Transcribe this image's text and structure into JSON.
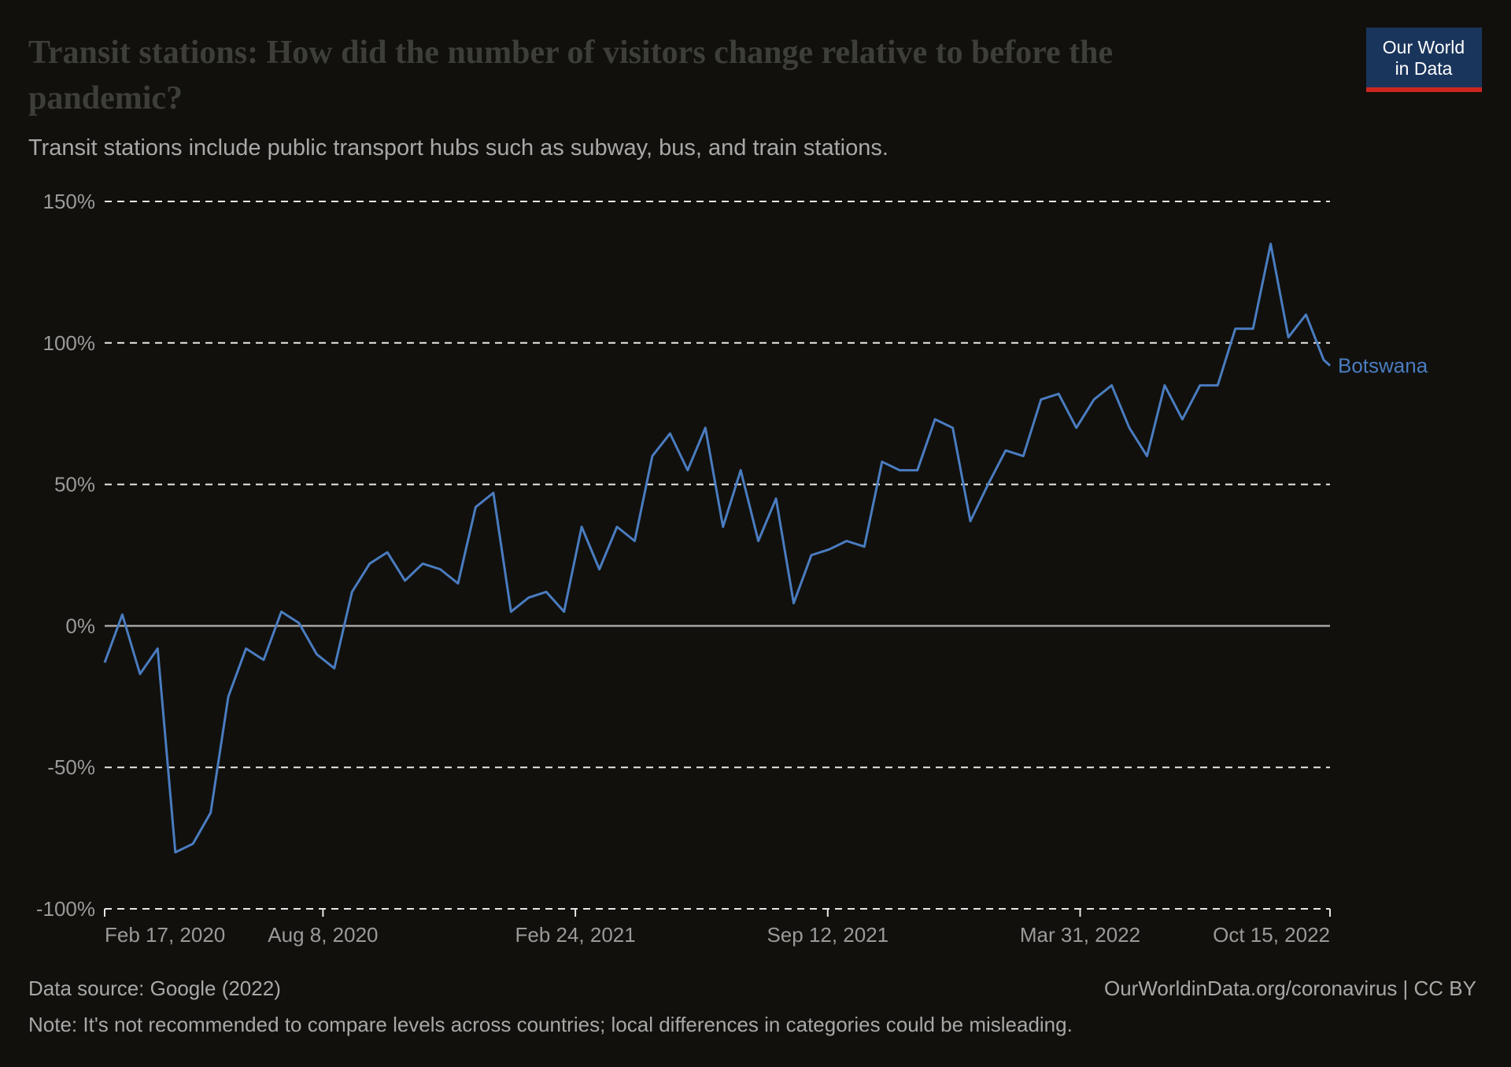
{
  "chart_data": {
    "type": "line",
    "title": "Transit stations: How did the number of visitors change relative to before the pandemic?",
    "subtitle": "Transit stations include public transport hubs such as subway, bus, and train stations.",
    "source": "Data source: Google (2022)",
    "credit": "OurWorldinData.org/coronavirus | CC BY",
    "note": "Note: It's not recommended to compare levels across countries; local differences in categories could be misleading.",
    "logo": [
      "Our World",
      "in Data"
    ],
    "x": [
      "2020-02-17",
      "2020-03-02",
      "2020-03-16",
      "2020-03-30",
      "2020-04-13",
      "2020-04-27",
      "2020-05-11",
      "2020-05-25",
      "2020-06-08",
      "2020-06-22",
      "2020-07-06",
      "2020-07-20",
      "2020-08-03",
      "2020-08-17",
      "2020-08-31",
      "2020-09-14",
      "2020-09-28",
      "2020-10-12",
      "2020-10-26",
      "2020-11-09",
      "2020-11-23",
      "2020-12-07",
      "2020-12-21",
      "2021-01-04",
      "2021-01-18",
      "2021-02-01",
      "2021-02-15",
      "2021-03-01",
      "2021-03-15",
      "2021-03-29",
      "2021-04-12",
      "2021-04-26",
      "2021-05-10",
      "2021-05-24",
      "2021-06-07",
      "2021-06-21",
      "2021-07-05",
      "2021-07-19",
      "2021-08-02",
      "2021-08-16",
      "2021-08-30",
      "2021-09-13",
      "2021-09-27",
      "2021-10-11",
      "2021-10-25",
      "2021-11-08",
      "2021-11-22",
      "2021-12-06",
      "2021-12-20",
      "2022-01-03",
      "2022-01-17",
      "2022-01-31",
      "2022-02-14",
      "2022-02-28",
      "2022-03-14",
      "2022-03-28",
      "2022-04-11",
      "2022-04-25",
      "2022-05-09",
      "2022-05-23",
      "2022-06-06",
      "2022-06-20",
      "2022-07-04",
      "2022-07-18",
      "2022-08-01",
      "2022-08-15",
      "2022-08-29",
      "2022-09-12",
      "2022-09-26",
      "2022-10-10",
      "2022-10-15"
    ],
    "series": [
      {
        "name": "Botswana",
        "color": "#4a7cc0",
        "values": [
          -13,
          4,
          -17,
          -8,
          -80,
          -77,
          -66,
          -25,
          -8,
          -12,
          5,
          1,
          -10,
          -15,
          12,
          22,
          26,
          16,
          22,
          20,
          15,
          42,
          47,
          5,
          10,
          12,
          5,
          35,
          20,
          35,
          30,
          60,
          68,
          55,
          70,
          35,
          55,
          30,
          45,
          8,
          25,
          27,
          30,
          28,
          58,
          55,
          55,
          73,
          70,
          37,
          50,
          62,
          60,
          80,
          82,
          70,
          80,
          85,
          70,
          60,
          85,
          73,
          85,
          85,
          105,
          105,
          135,
          102,
          110,
          94,
          92
        ]
      }
    ],
    "xlim": [
      "2020-02-17",
      "2022-10-15"
    ],
    "xticks": [
      {
        "value": "2020-02-17",
        "label": "Feb 17, 2020"
      },
      {
        "value": "2020-08-08",
        "label": "Aug 8, 2020"
      },
      {
        "value": "2021-02-24",
        "label": "Feb 24, 2021"
      },
      {
        "value": "2021-09-12",
        "label": "Sep 12, 2021"
      },
      {
        "value": "2022-03-31",
        "label": "Mar 31, 2022"
      },
      {
        "value": "2022-10-15",
        "label": "Oct 15, 2022"
      }
    ],
    "ylim": [
      -100,
      150
    ],
    "yticks": [
      {
        "value": -100,
        "label": "-100%"
      },
      {
        "value": -50,
        "label": "-50%"
      },
      {
        "value": 0,
        "label": "0%"
      },
      {
        "value": 50,
        "label": "50%"
      },
      {
        "value": 100,
        "label": "100%"
      },
      {
        "value": 150,
        "label": "150%"
      }
    ],
    "grid": true
  }
}
